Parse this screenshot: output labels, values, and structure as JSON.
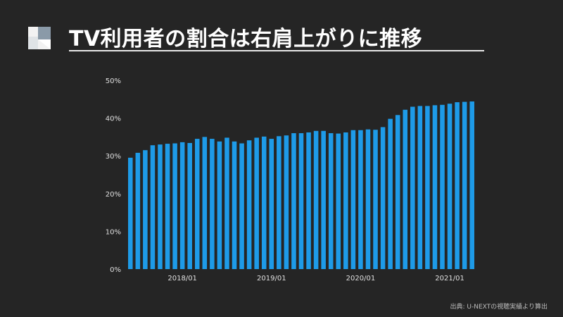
{
  "header": {
    "title": "TV利用者の割合は右肩上がりに推移",
    "logo_icon": "folded-corner-square-icon"
  },
  "footer": {
    "source": "出典: U-NEXTの視聴実績より算出"
  },
  "colors": {
    "background": "#252525",
    "bar": "#1e9be8",
    "axis_text": "#e0e0e0"
  },
  "chart_data": {
    "type": "bar",
    "title": "",
    "xlabel": "",
    "ylabel": "",
    "ylim": [
      0,
      50
    ],
    "y_ticks": [
      "0%",
      "10%",
      "20%",
      "30%",
      "40%",
      "50%"
    ],
    "x_tick_labels": [
      {
        "index": 7,
        "label": "2018/01"
      },
      {
        "index": 19,
        "label": "2019/01"
      },
      {
        "index": 31,
        "label": "2020/01"
      },
      {
        "index": 43,
        "label": "2021/01"
      }
    ],
    "grid": false,
    "values": [
      29.5,
      30.8,
      31.5,
      32.8,
      33.0,
      33.2,
      33.3,
      33.6,
      33.4,
      34.5,
      35.0,
      34.5,
      33.8,
      34.8,
      33.8,
      33.3,
      34.1,
      34.8,
      35.1,
      34.5,
      35.2,
      35.4,
      36.0,
      36.0,
      36.2,
      36.6,
      36.6,
      36.0,
      35.9,
      36.2,
      36.8,
      36.8,
      37.0,
      36.9,
      37.6,
      39.8,
      40.8,
      42.2,
      43.0,
      43.2,
      43.2,
      43.4,
      43.5,
      43.8,
      44.2,
      44.3,
      44.4
    ]
  }
}
